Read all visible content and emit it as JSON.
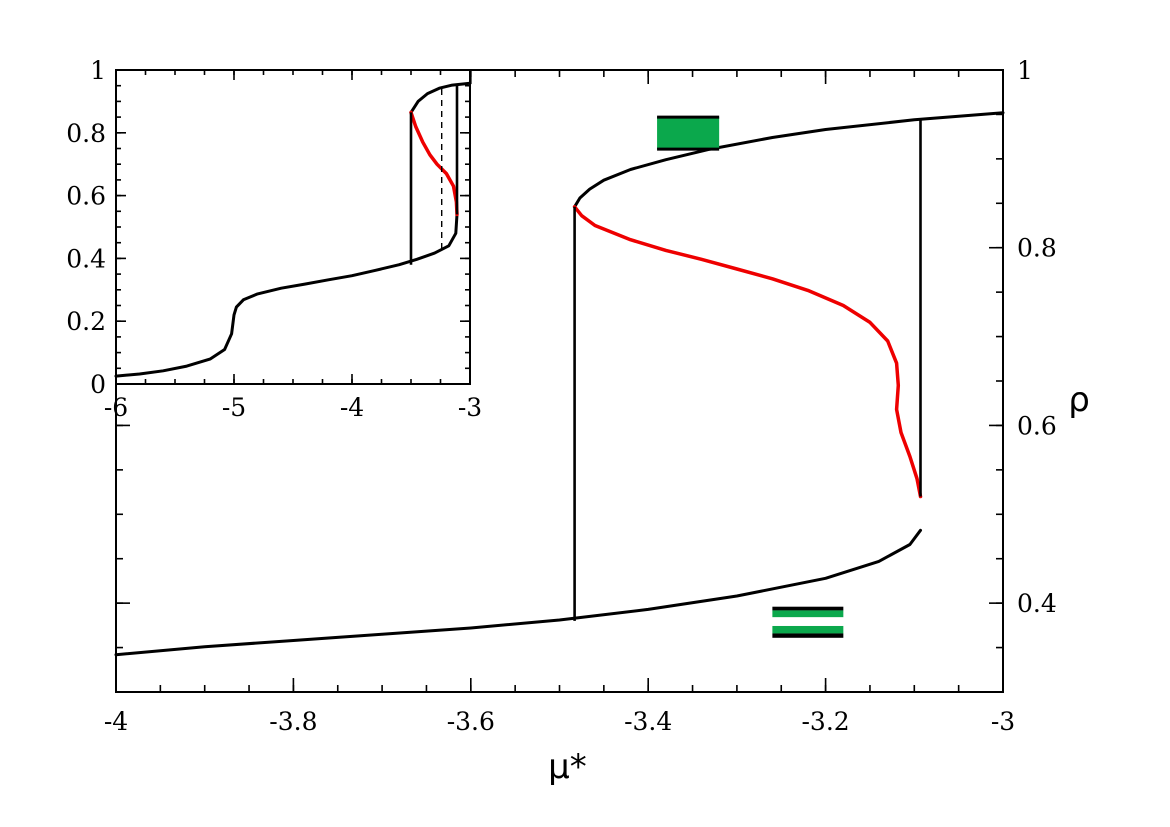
{
  "chart_data": [
    {
      "id": "main",
      "type": "line",
      "xlabel": "μ*",
      "ylabel": "ρ",
      "xlim": [
        -4,
        -3
      ],
      "ylim": [
        0.3,
        1.0
      ],
      "x_ticks": [
        -4,
        -3.8,
        -3.6,
        -3.4,
        -3.2,
        -3
      ],
      "x_tick_labels": [
        "-4",
        "-3.8",
        "-3.6",
        "-3.4",
        "-3.2",
        "-3"
      ],
      "y_ticks": [
        0.4,
        0.6,
        0.8,
        1.0
      ],
      "y_tick_labels": [
        "0.4",
        "0.6",
        "0.8",
        "1"
      ],
      "y_axis_side": "right",
      "grid": false,
      "series": [
        {
          "color": "#000000",
          "style": "solid",
          "points": [
            [
              -4.0,
              0.342
            ],
            [
              -3.9,
              0.351
            ],
            [
              -3.8,
              0.358
            ],
            [
              -3.7,
              0.365
            ],
            [
              -3.6,
              0.372
            ],
            [
              -3.5,
              0.381
            ],
            [
              -3.4,
              0.393
            ],
            [
              -3.3,
              0.408
            ],
            [
              -3.2,
              0.428
            ],
            [
              -3.14,
              0.447
            ],
            [
              -3.105,
              0.466
            ],
            [
              -3.093,
              0.482
            ]
          ]
        },
        {
          "color": "#000000",
          "style": "solid",
          "points": [
            [
              -3.483,
              0.846
            ],
            [
              -3.477,
              0.856
            ],
            [
              -3.466,
              0.866
            ],
            [
              -3.45,
              0.876
            ],
            [
              -3.42,
              0.888
            ],
            [
              -3.38,
              0.899
            ],
            [
              -3.33,
              0.911
            ],
            [
              -3.26,
              0.924
            ],
            [
              -3.2,
              0.933
            ],
            [
              -3.1,
              0.944
            ],
            [
              -3.0,
              0.952
            ]
          ]
        },
        {
          "color": "#ee0000",
          "style": "solid",
          "points": [
            [
              -3.483,
              0.846
            ],
            [
              -3.475,
              0.836
            ],
            [
              -3.46,
              0.825
            ],
            [
              -3.42,
              0.809
            ],
            [
              -3.38,
              0.797
            ],
            [
              -3.34,
              0.787
            ],
            [
              -3.3,
              0.776
            ],
            [
              -3.26,
              0.765
            ],
            [
              -3.22,
              0.752
            ],
            [
              -3.18,
              0.735
            ],
            [
              -3.15,
              0.716
            ],
            [
              -3.13,
              0.695
            ],
            [
              -3.12,
              0.67
            ],
            [
              -3.118,
              0.645
            ],
            [
              -3.12,
              0.618
            ],
            [
              -3.115,
              0.592
            ],
            [
              -3.105,
              0.565
            ],
            [
              -3.097,
              0.54
            ],
            [
              -3.093,
              0.52
            ]
          ]
        },
        {
          "color": "#000000",
          "style": "solid",
          "points": [
            [
              -3.483,
              0.38
            ],
            [
              -3.483,
              0.846
            ]
          ]
        },
        {
          "color": "#000000",
          "style": "solid",
          "points": [
            [
              -3.093,
              0.52
            ],
            [
              -3.093,
              0.944
            ]
          ]
        }
      ],
      "annotations": [
        {
          "kind": "green-block",
          "shape": "filled",
          "x": [
            -3.39,
            -3.32
          ],
          "y": [
            0.911,
            0.947
          ]
        },
        {
          "kind": "green-block",
          "shape": "striped",
          "x": [
            -3.26,
            -3.18
          ],
          "y": [
            0.361,
            0.396
          ]
        }
      ]
    },
    {
      "id": "inset",
      "type": "line",
      "xlabel": "",
      "ylabel": "",
      "xlim": [
        -6,
        -3
      ],
      "ylim": [
        0,
        1
      ],
      "x_ticks": [
        -6,
        -5,
        -4,
        -3
      ],
      "x_tick_labels": [
        "-6",
        "-5",
        "-4",
        "-3"
      ],
      "y_ticks": [
        0,
        0.2,
        0.4,
        0.6,
        0.8,
        1
      ],
      "y_tick_labels": [
        "0",
        "0.2",
        "0.4",
        "0.6",
        "0.8",
        "1"
      ],
      "grid": false,
      "series": [
        {
          "color": "#000000",
          "style": "solid",
          "points": [
            [
              -6.0,
              0.025
            ],
            [
              -5.8,
              0.032
            ],
            [
              -5.6,
              0.042
            ],
            [
              -5.4,
              0.057
            ],
            [
              -5.2,
              0.08
            ],
            [
              -5.08,
              0.11
            ],
            [
              -5.02,
              0.16
            ],
            [
              -5.0,
              0.22
            ],
            [
              -4.98,
              0.245
            ],
            [
              -4.92,
              0.268
            ],
            [
              -4.8,
              0.287
            ],
            [
              -4.6,
              0.305
            ],
            [
              -4.4,
              0.318
            ],
            [
              -4.2,
              0.332
            ],
            [
              -4.0,
              0.345
            ],
            [
              -3.8,
              0.362
            ],
            [
              -3.6,
              0.38
            ],
            [
              -3.45,
              0.397
            ],
            [
              -3.3,
              0.417
            ],
            [
              -3.18,
              0.44
            ],
            [
              -3.12,
              0.48
            ],
            [
              -3.11,
              0.54
            ]
          ]
        },
        {
          "color": "#000000",
          "style": "solid",
          "points": [
            [
              -3.5,
              0.865
            ],
            [
              -3.44,
              0.9
            ],
            [
              -3.36,
              0.925
            ],
            [
              -3.26,
              0.942
            ],
            [
              -3.15,
              0.952
            ],
            [
              -3.0,
              0.958
            ]
          ]
        },
        {
          "color": "#ee0000",
          "style": "solid",
          "points": [
            [
              -3.5,
              0.865
            ],
            [
              -3.46,
              0.82
            ],
            [
              -3.4,
              0.77
            ],
            [
              -3.34,
              0.73
            ],
            [
              -3.28,
              0.7
            ],
            [
              -3.2,
              0.67
            ],
            [
              -3.14,
              0.63
            ],
            [
              -3.115,
              0.58
            ],
            [
              -3.11,
              0.54
            ]
          ]
        },
        {
          "color": "#000000",
          "style": "solid",
          "points": [
            [
              -3.5,
              0.38
            ],
            [
              -3.5,
              0.865
            ]
          ]
        },
        {
          "color": "#000000",
          "style": "solid",
          "points": [
            [
              -3.11,
              0.54
            ],
            [
              -3.11,
              0.952
            ]
          ]
        },
        {
          "color": "#000000",
          "style": "dashed",
          "points": [
            [
              -3.24,
              0.43
            ],
            [
              -3.24,
              0.945
            ]
          ]
        }
      ]
    }
  ],
  "colors": {
    "frame": "#000000",
    "stable_branch": "#000000",
    "unstable_branch": "#ee0000",
    "marker_fill": "#0ba84c"
  }
}
